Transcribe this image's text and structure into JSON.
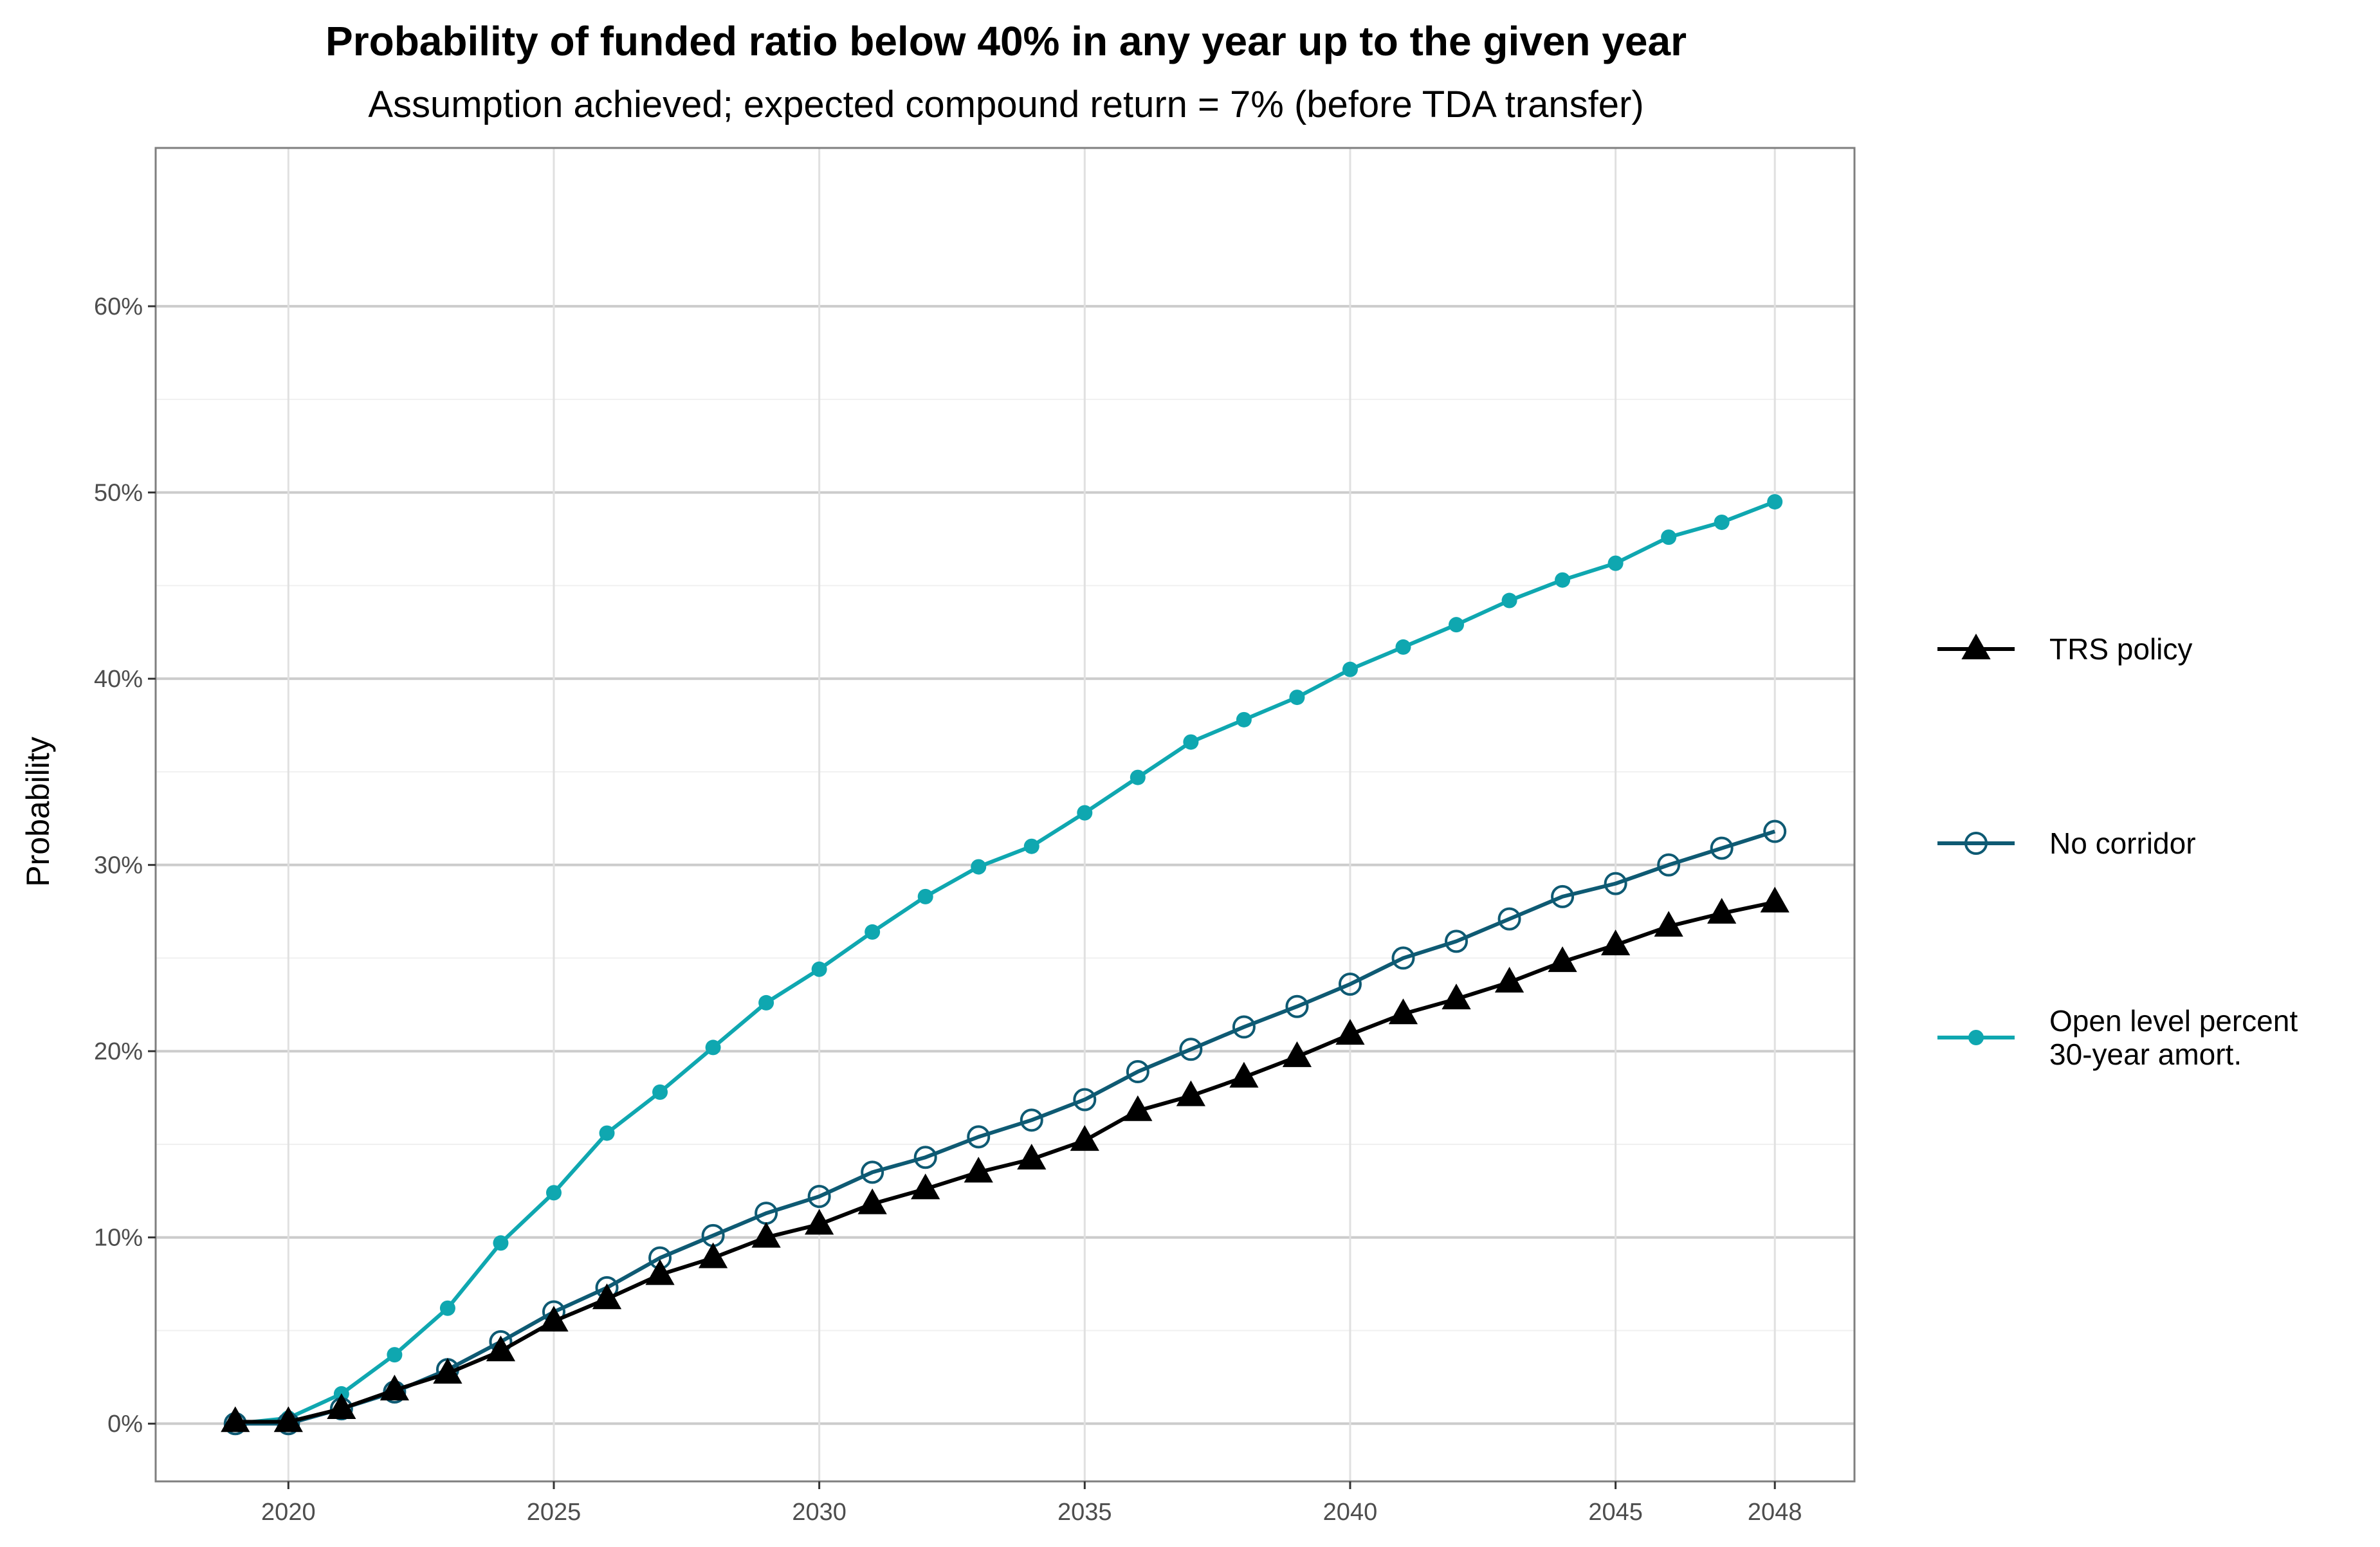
{
  "chart_data": {
    "type": "line",
    "title": "Probability of funded ratio below 40% in any year up to the given year",
    "subtitle": "Assumption achieved; expected compound return = 7% (before TDA transfer)",
    "xlabel": "",
    "ylabel": "Probability",
    "xlim": [
      2017.5,
      2049.5
    ],
    "ylim": [
      -3.1,
      68.5
    ],
    "x_ticks": [
      2020,
      2025,
      2030,
      2035,
      2040,
      2045,
      2048
    ],
    "x_tick_labels": [
      "2020",
      "2025",
      "2030",
      "2035",
      "2040",
      "2045",
      "2048"
    ],
    "y_ticks": [
      0,
      10,
      20,
      30,
      40,
      50,
      60
    ],
    "y_tick_labels": [
      "0%",
      "10%",
      "20%",
      "30%",
      "40%",
      "50%",
      "60%"
    ],
    "grid": true,
    "legend_position": "right",
    "x": [
      2019,
      2020,
      2021,
      2022,
      2023,
      2024,
      2025,
      2026,
      2027,
      2028,
      2029,
      2030,
      2031,
      2032,
      2033,
      2034,
      2035,
      2036,
      2037,
      2038,
      2039,
      2040,
      2041,
      2042,
      2043,
      2044,
      2045,
      2046,
      2047,
      2048
    ],
    "series": [
      {
        "name": "TRS policy",
        "color": "#000000",
        "marker": "triangle",
        "values": [
          0.1,
          0.1,
          0.8,
          1.8,
          2.7,
          3.9,
          5.5,
          6.7,
          8.0,
          8.9,
          10.0,
          10.7,
          11.8,
          12.6,
          13.5,
          14.2,
          15.2,
          16.8,
          17.6,
          18.6,
          19.7,
          20.9,
          22.0,
          22.8,
          23.7,
          24.8,
          25.7,
          26.7,
          27.4,
          28.0
        ]
      },
      {
        "name": "No corridor",
        "color": "#0e5a73",
        "marker": "open-circle",
        "values": [
          0.0,
          0.0,
          0.8,
          1.7,
          2.9,
          4.4,
          6.0,
          7.3,
          8.9,
          10.1,
          11.3,
          12.2,
          13.5,
          14.3,
          15.4,
          16.3,
          17.4,
          18.9,
          20.1,
          21.3,
          22.4,
          23.6,
          25.0,
          25.9,
          27.1,
          28.3,
          29.0,
          30.0,
          30.9,
          31.8
        ]
      },
      {
        "name": "Open level percent\n30-year amort.",
        "color": "#0fa7b0",
        "marker": "filled-circle",
        "values": [
          0.0,
          0.3,
          1.6,
          3.7,
          6.2,
          9.7,
          12.4,
          15.6,
          17.8,
          20.2,
          22.6,
          24.4,
          26.4,
          28.3,
          29.9,
          31.0,
          32.8,
          34.7,
          36.6,
          37.8,
          39.0,
          40.5,
          41.7,
          42.9,
          44.2,
          45.3,
          46.2,
          47.6,
          48.4,
          49.5
        ]
      }
    ]
  }
}
